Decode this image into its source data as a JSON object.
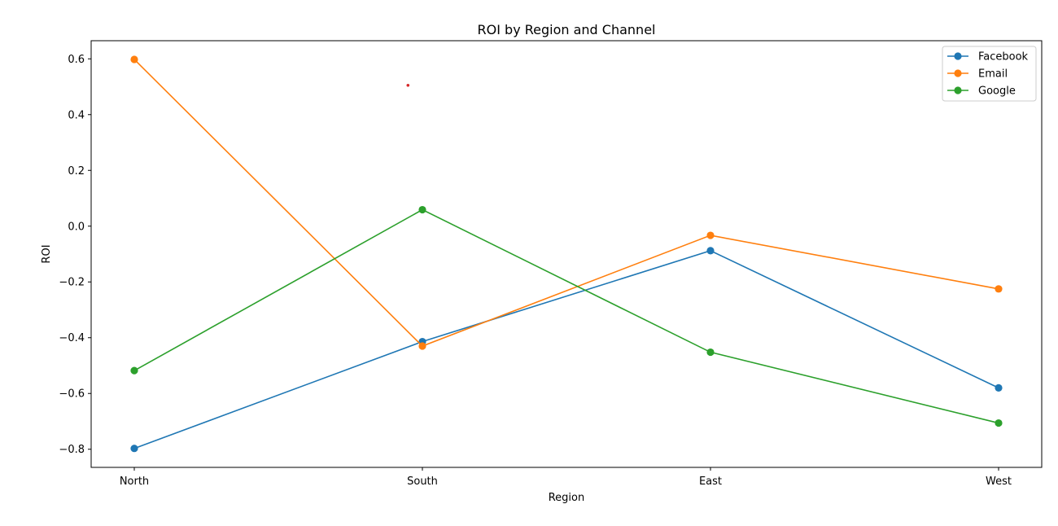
{
  "chart_data": {
    "type": "line",
    "title": "ROI by Region and Channel",
    "xlabel": "Region",
    "ylabel": "ROI",
    "categories": [
      "North",
      "South",
      "East",
      "West"
    ],
    "ylim": [
      -0.865,
      0.665
    ],
    "yticks": [
      -0.8,
      -0.6,
      -0.4,
      -0.2,
      0.0,
      0.2,
      0.4,
      0.6
    ],
    "ytick_labels": [
      "−0.8",
      "−0.6",
      "−0.4",
      "−0.2",
      "0.0",
      "0.2",
      "0.4",
      "0.6"
    ],
    "grid": false,
    "legend_position": "top-right",
    "series": [
      {
        "name": "Facebook",
        "color": "#1f77b4",
        "values": [
          -0.797,
          -0.414,
          -0.088,
          -0.58
        ]
      },
      {
        "name": "Email",
        "color": "#ff7f0e",
        "values": [
          0.598,
          -0.43,
          -0.033,
          -0.225
        ]
      },
      {
        "name": "Google",
        "color": "#2ca02c",
        "values": [
          -0.518,
          0.059,
          -0.452,
          -0.706
        ]
      }
    ],
    "annotation_point": {
      "x": 0.95,
      "y": 0.505,
      "color": "#d62728"
    }
  }
}
